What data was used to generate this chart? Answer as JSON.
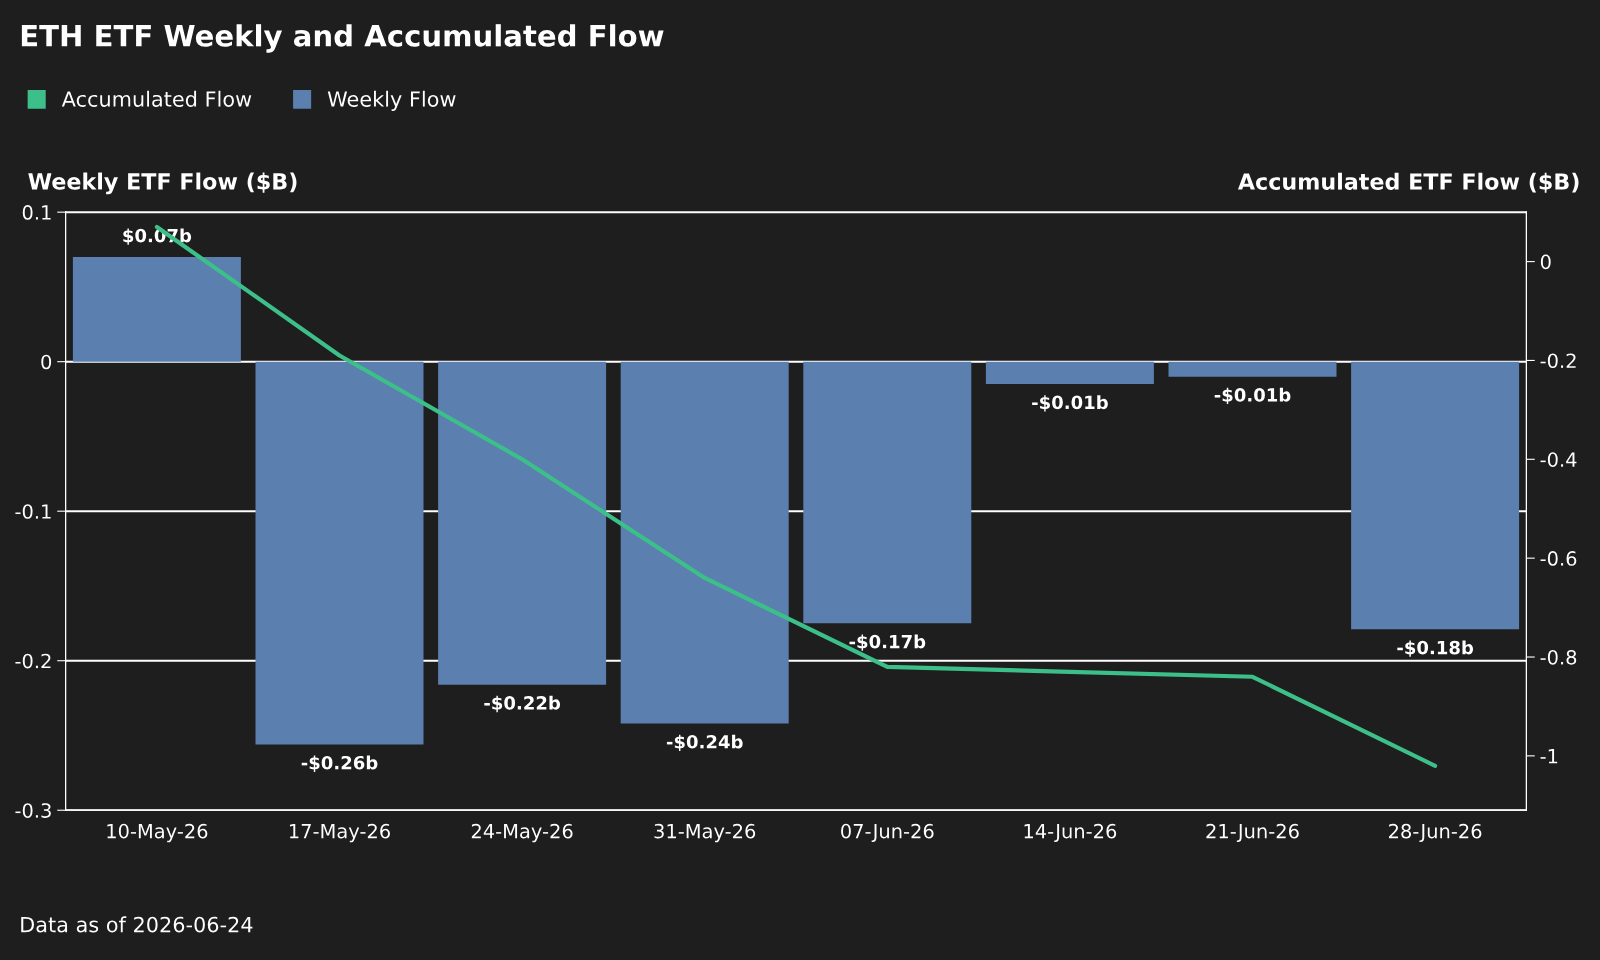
{
  "chart_data": {
    "type": "bar",
    "title": "ETH ETF Weekly and Accumulated Flow",
    "categories": [
      "10-May-26",
      "17-May-26",
      "24-May-26",
      "31-May-26",
      "07-Jun-26",
      "14-Jun-26",
      "21-Jun-26",
      "28-Jun-26"
    ],
    "ylabel": "Weekly ETF Flow ($B)",
    "y2label": "Accumulated ETF Flow ($B)",
    "series": [
      {
        "name": "Accumulated Flow",
        "type": "line",
        "axis": "y2",
        "color": "#3dbf8a",
        "values": [
          0.07,
          -0.19,
          -0.4,
          -0.64,
          -0.82,
          -0.83,
          -0.84,
          -1.02
        ]
      },
      {
        "name": "Weekly Flow",
        "color": "#5b7fae",
        "values": [
          0.07,
          -0.256,
          -0.216,
          -0.242,
          -0.175,
          -0.015,
          -0.01,
          -0.179
        ],
        "value_labels": [
          "$0.07b",
          "-$0.26b",
          "-$0.22b",
          "-$0.24b",
          "-$0.17b",
          "-$0.01b",
          "-$0.01b",
          "-$0.18b"
        ]
      }
    ],
    "ylim": [
      -0.3,
      0.1
    ],
    "yticks": [
      -0.3,
      -0.2,
      -0.1,
      0,
      0.1
    ],
    "y2lim": [
      -1.11,
      0.1
    ],
    "y2ticks": [
      {
        "value": -1,
        "label": "-1"
      },
      -0.8,
      -0.6,
      -0.4,
      -0.2,
      0
    ],
    "grid": "y",
    "legend": "top left",
    "marker": "none",
    "line_style": "solid",
    "annotations": [
      "Data as of 2026-06-24"
    ]
  }
}
